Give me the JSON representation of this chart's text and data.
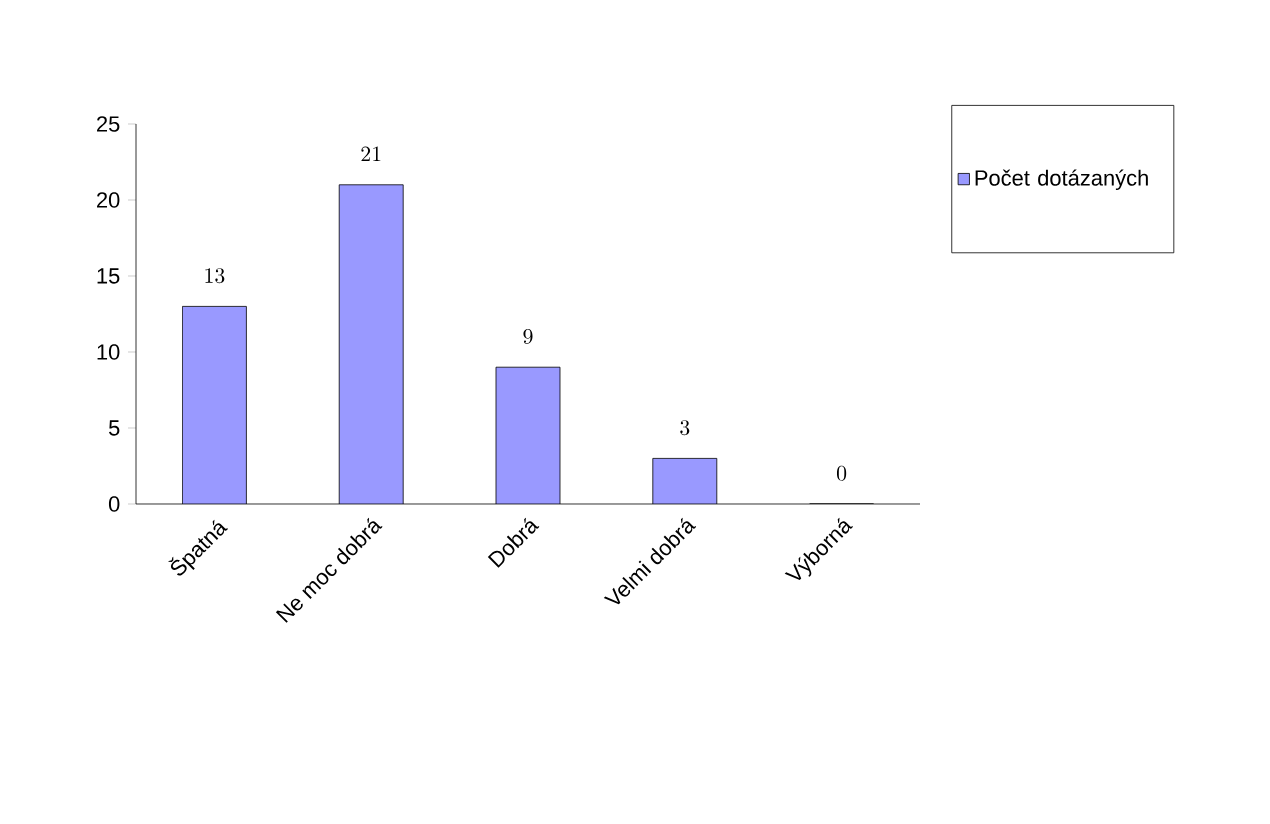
{
  "chart_data": {
    "type": "bar",
    "categories": [
      "Špatná",
      "Ne moc dobrá",
      "Dobrá",
      "Velmi dobrá",
      "Výborná"
    ],
    "series": [
      {
        "name": "Počet dotázaných",
        "color": "#9999ff",
        "values": [
          13,
          21,
          9,
          3,
          0
        ]
      }
    ],
    "ylim": [
      0,
      25
    ],
    "yticks": [
      0,
      5,
      10,
      15,
      20,
      25
    ],
    "data_labels": true,
    "legend": "right"
  }
}
